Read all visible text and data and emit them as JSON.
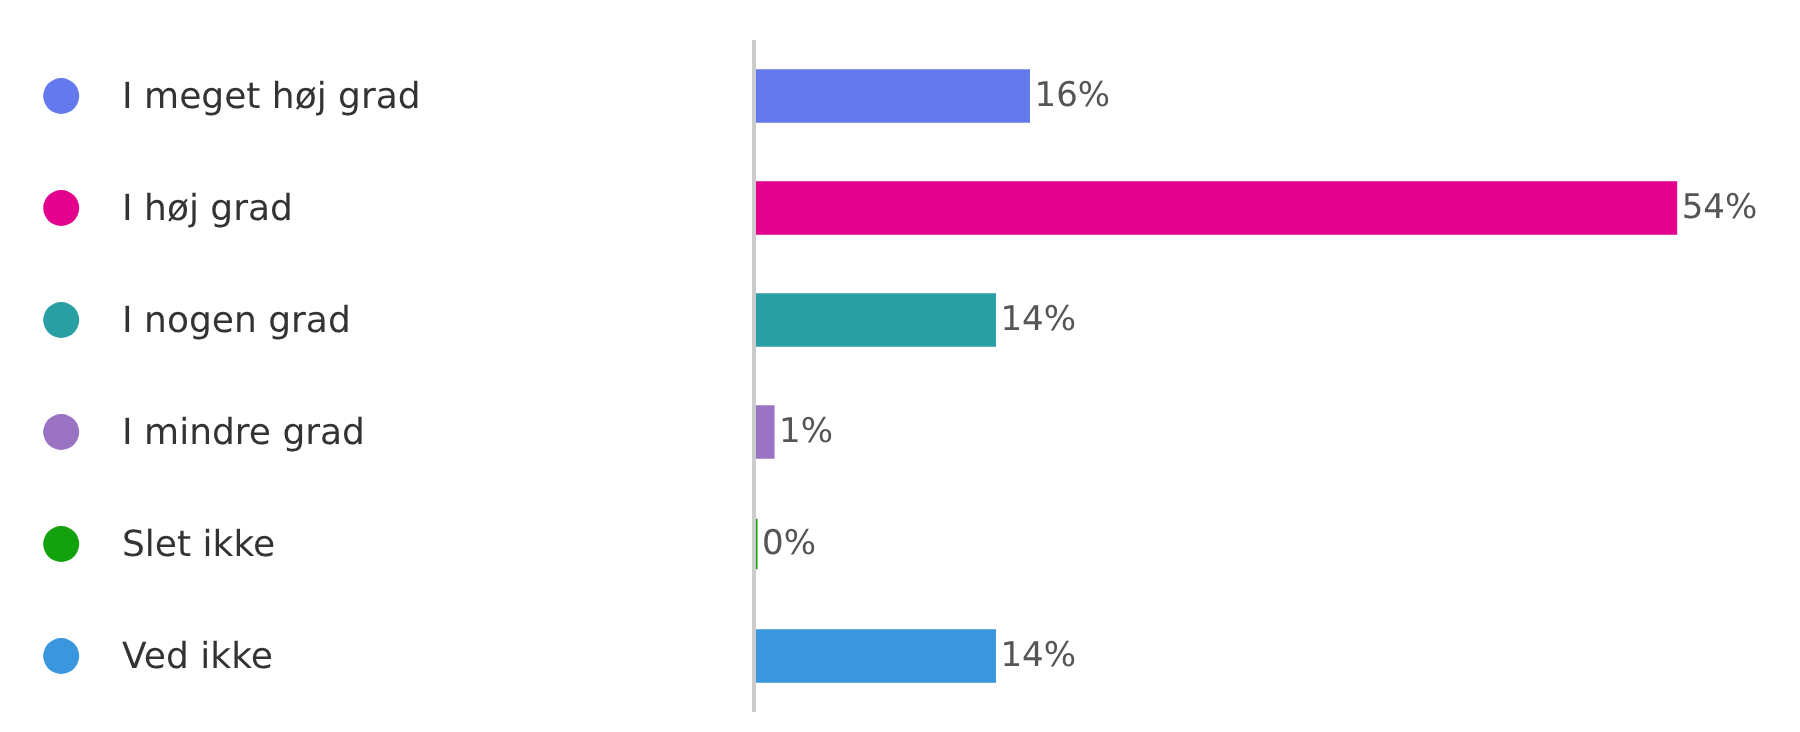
{
  "chart_data": {
    "type": "bar",
    "orientation": "horizontal",
    "categories": [
      "I meget høj grad",
      "I høj grad",
      "I nogen grad",
      "I mindre grad",
      "Slet ikke",
      "Ved ikke"
    ],
    "values": [
      16,
      54,
      14,
      1,
      0,
      14
    ],
    "value_labels": [
      "16%",
      "54%",
      "14%",
      "1%",
      "0%",
      "14%"
    ],
    "colors": [
      "#6479ed",
      "#e3008c",
      "#2a9fa3",
      "#9b73c3",
      "#13a10e",
      "#3a96dd"
    ],
    "xlim": [
      0,
      61.3
    ]
  }
}
